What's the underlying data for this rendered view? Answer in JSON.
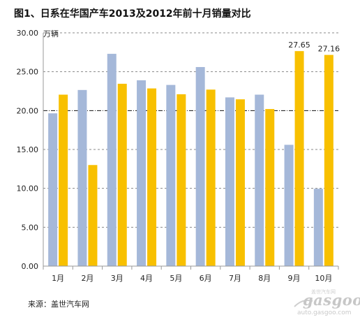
{
  "title": "图1、日系在华国产车2013及2012年前十月销量对比",
  "source": "来源：盖世汽车网",
  "watermark": {
    "brand": "gasgoo",
    "url": "auto.gasgoo.com",
    "cn": "盖世汽车网"
  },
  "colors": {
    "series_2013": "#a5b8d9",
    "series_2012": "#f8c000",
    "grid": "#888888",
    "axis": "#999999"
  },
  "chart_data": {
    "type": "bar",
    "unit": "万辆",
    "categories": [
      "1月",
      "2月",
      "3月",
      "4月",
      "5月",
      "6月",
      "7月",
      "8月",
      "9月",
      "10月"
    ],
    "series": [
      {
        "values": [
          19.65,
          22.65,
          27.3,
          23.9,
          23.3,
          25.6,
          21.7,
          22.05,
          15.6,
          9.95
        ],
        "color": "#a5b8d9"
      },
      {
        "values": [
          22.05,
          13.0,
          23.45,
          22.85,
          22.1,
          22.7,
          21.45,
          20.2,
          27.65,
          27.16
        ],
        "color": "#f8c000"
      }
    ],
    "data_labels": [
      {
        "category": "9月",
        "series": 1,
        "text": "27.65"
      },
      {
        "category": "10月",
        "series": 1,
        "text": "27.16"
      }
    ],
    "yticks": [
      "0.00",
      "5.00",
      "10.00",
      "15.00",
      "20.00",
      "25.00",
      "30.00"
    ],
    "ylim": [
      0,
      30
    ],
    "reference_line": 20,
    "grid": true
  }
}
